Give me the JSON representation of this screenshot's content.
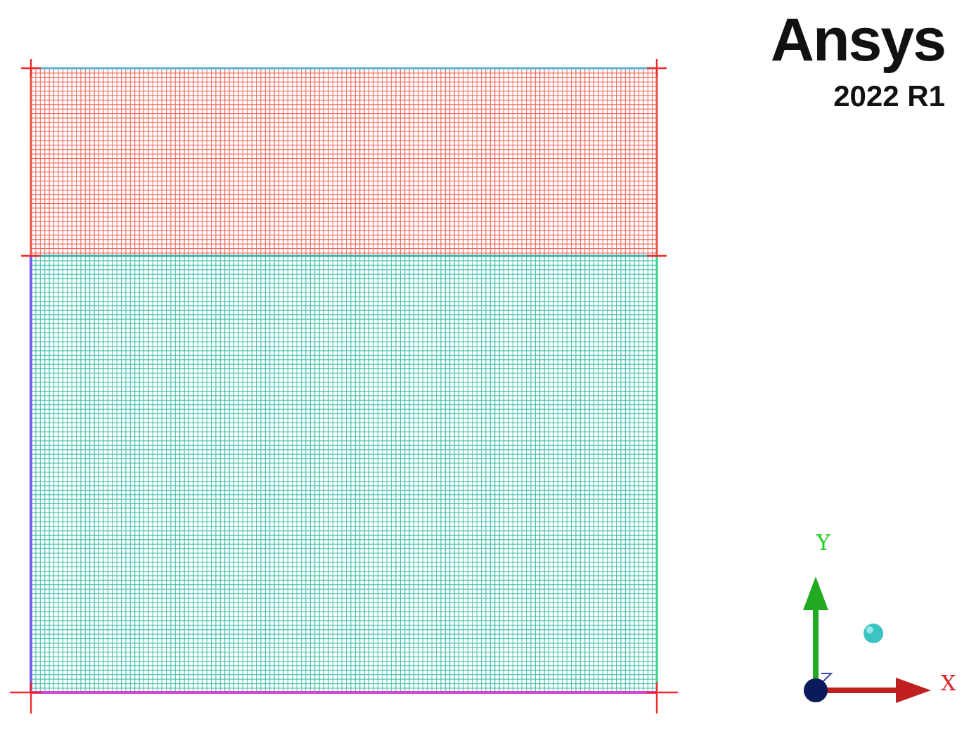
{
  "branding": {
    "product": "Ansys",
    "version": "2022 R1"
  },
  "triad": {
    "y_label": "Y",
    "x_label": "X",
    "y_color": "#22bb22",
    "x_color": "#cc2222",
    "origin_color": "#0a1a5a",
    "z_color": "#3344aa",
    "sphere_color": "#3cc4c4"
  },
  "mesh": {
    "zones": [
      {
        "name": "upper-zone",
        "fill": "#f0584a",
        "line": "#f2796c"
      },
      {
        "name": "lower-zone",
        "fill": "#47c4ae",
        "line": "#3fbaa5"
      }
    ],
    "boundaries": {
      "left": "#7a5cf0",
      "bottom": "#d04ad8",
      "right": "#2ed686",
      "top": "#56b4d6",
      "interface": "#40b4b4",
      "markers": "#f02a2a"
    }
  }
}
